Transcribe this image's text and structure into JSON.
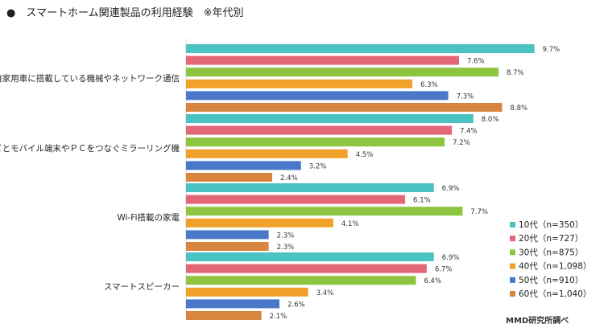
{
  "chart_data": {
    "type": "bar",
    "orientation": "horizontal",
    "title": "●　スマートホーム関連製品の利用経験　※年代別",
    "categories": [
      "自家用車に搭載している機械やネットワーク通信",
      "テレビとモバイル端末やＰＣをつなぐミラーリング機",
      "Wi-Fi搭載の家電",
      "スマートスピーカー"
    ],
    "series": [
      {
        "name": "10代（n=350）",
        "color": "#4bc3c3",
        "values": [
          9.7,
          8.0,
          6.9,
          6.9
        ]
      },
      {
        "name": "20代（n=727）",
        "color": "#e36776",
        "values": [
          7.6,
          7.4,
          6.1,
          6.7
        ]
      },
      {
        "name": "30代（n=875）",
        "color": "#8dc540",
        "values": [
          8.7,
          7.2,
          7.7,
          6.4
        ]
      },
      {
        "name": "40代（n=1,098）",
        "color": "#f0a12a",
        "values": [
          6.3,
          4.5,
          4.1,
          3.4
        ]
      },
      {
        "name": "50代（n=910）",
        "color": "#4a78c8",
        "values": [
          7.3,
          3.2,
          2.3,
          2.6
        ]
      },
      {
        "name": "60代（n=1,040）",
        "color": "#d8863f",
        "values": [
          8.8,
          2.4,
          2.3,
          2.1
        ]
      }
    ],
    "value_suffix": "%",
    "xlim": [
      0,
      10
    ],
    "grid": false,
    "legend_position": "right",
    "source": "MMD研究所調べ"
  }
}
